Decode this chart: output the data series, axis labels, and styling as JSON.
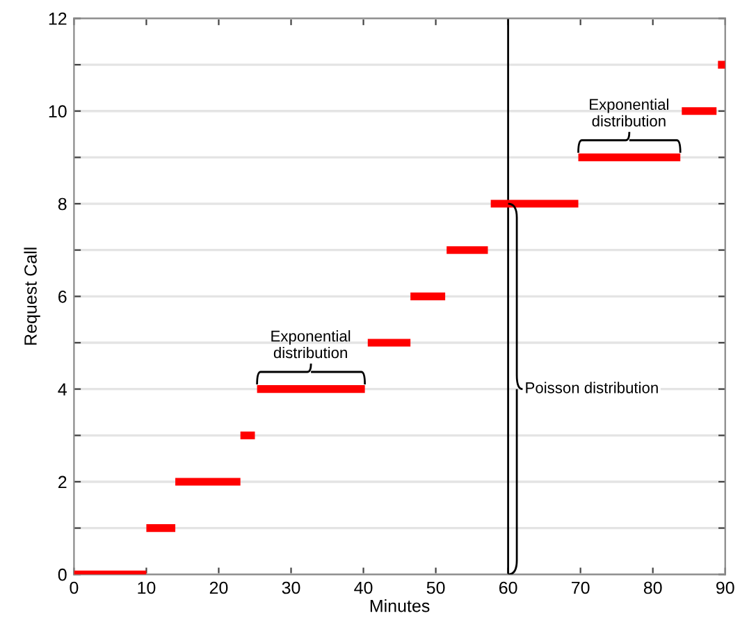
{
  "chart_data": {
    "type": "line",
    "xlabel": "Minutes",
    "ylabel": "Request Call",
    "xlim": [
      0,
      90
    ],
    "ylim": [
      0,
      12
    ],
    "xticks": [
      0,
      10,
      20,
      30,
      40,
      50,
      60,
      70,
      80,
      90
    ],
    "yticks": [
      0,
      {
        "value": 1,
        "label": null
      },
      2,
      {
        "value": 3,
        "label": null
      },
      4,
      {
        "value": 5,
        "label": null
      },
      6,
      {
        "value": 7,
        "label": null
      },
      8,
      {
        "value": 9,
        "label": null
      },
      10,
      {
        "value": 11,
        "label": null
      },
      12
    ],
    "grid": "y",
    "marker": "none",
    "line_style": "solid",
    "series": [
      {
        "color": "#ff0000",
        "x": [
          0,
          10
        ],
        "values": [
          0,
          0
        ]
      },
      {
        "color": "#ff0000",
        "x": [
          10,
          14
        ],
        "values": [
          1,
          1
        ]
      },
      {
        "color": "#ff0000",
        "x": [
          14,
          23
        ],
        "values": [
          2,
          2
        ]
      },
      {
        "color": "#ff0000",
        "x": [
          23,
          25
        ],
        "values": [
          3,
          3
        ]
      },
      {
        "color": "#ff0000",
        "x": [
          25.3,
          40.2
        ],
        "values": [
          4,
          4
        ]
      },
      {
        "color": "#ff0000",
        "x": [
          40.6,
          46.5
        ],
        "values": [
          5,
          5
        ]
      },
      {
        "color": "#ff0000",
        "x": [
          46.5,
          51.3
        ],
        "values": [
          6,
          6
        ]
      },
      {
        "color": "#ff0000",
        "x": [
          51.5,
          57.2
        ],
        "values": [
          7,
          7
        ]
      },
      {
        "color": "#ff0000",
        "x": [
          57.6,
          69.7
        ],
        "values": [
          8,
          8
        ]
      },
      {
        "color": "#ff0000",
        "x": [
          69.7,
          83.8
        ],
        "values": [
          9,
          9
        ]
      },
      {
        "color": "#ff0000",
        "x": [
          84,
          88.8
        ],
        "values": [
          10,
          10
        ]
      },
      {
        "color": "#ff0000",
        "x": [
          89,
          90
        ],
        "values": [
          11,
          11
        ]
      }
    ],
    "ref_lines": [
      {
        "axis": "x",
        "value": 60,
        "color": "#000000"
      }
    ],
    "annotations": [
      {
        "text": "Exponential\ndistribution",
        "x": 32.7,
        "y": 4
      },
      {
        "text": "Poisson distribution",
        "x": 60,
        "y": 4
      },
      {
        "text": "Exponential\ndistribution",
        "x": 76.7,
        "y": 9
      }
    ]
  }
}
